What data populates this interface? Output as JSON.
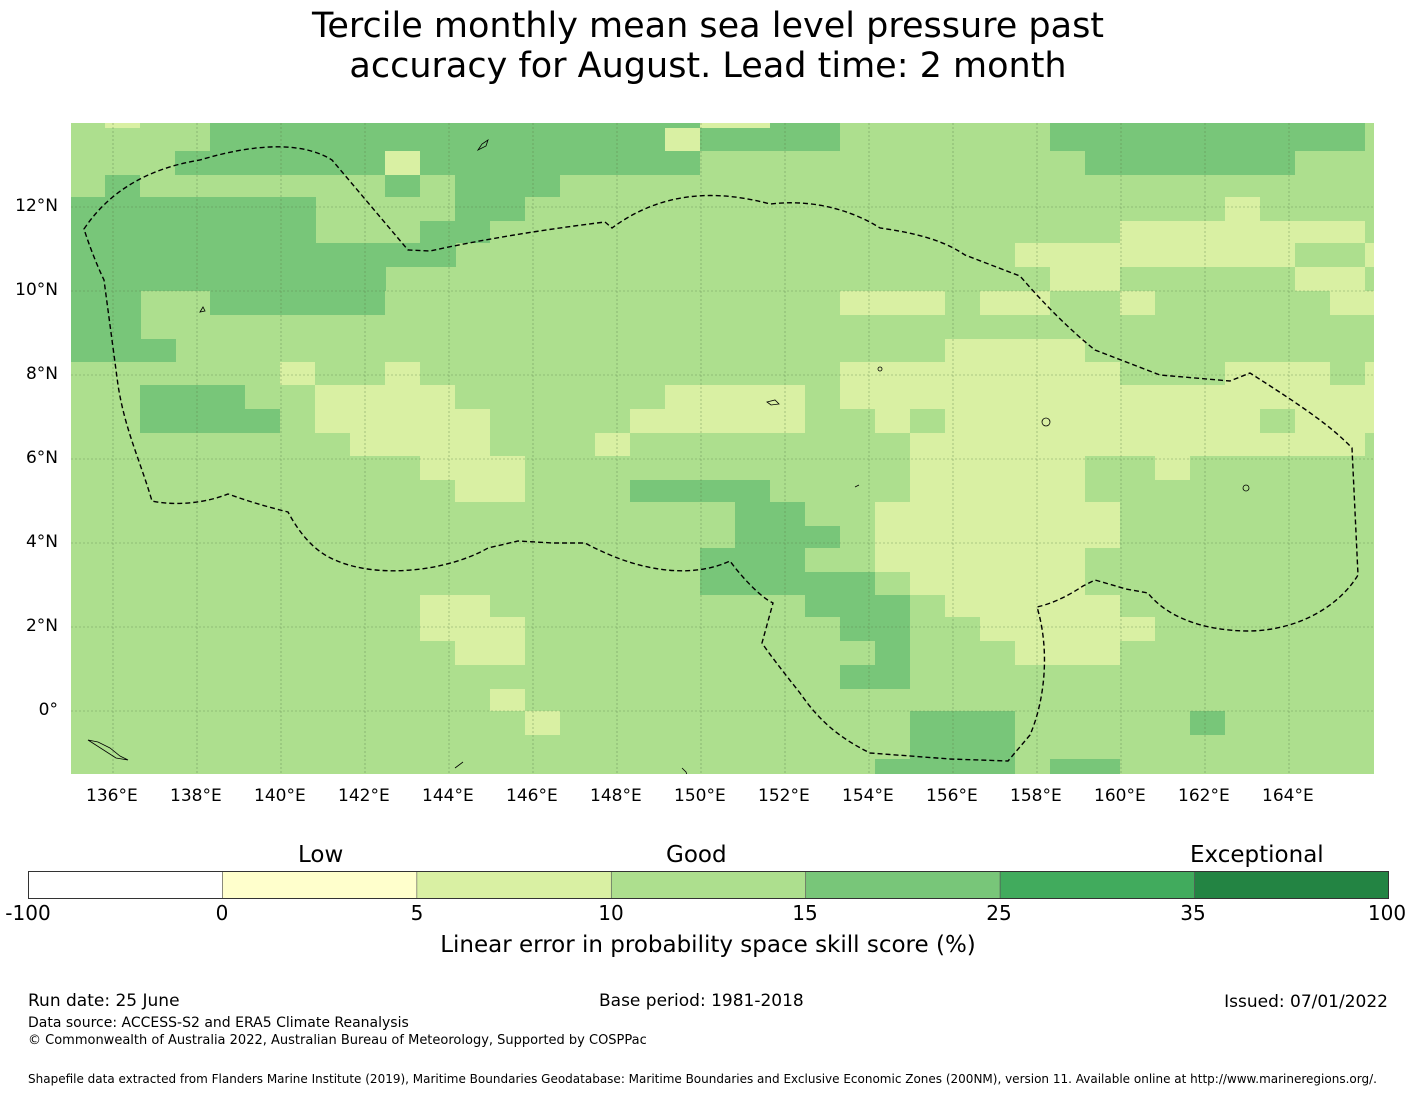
{
  "title_line1": "Tercile monthly mean sea level pressure past",
  "title_line2": "accuracy for August. Lead time: 2 month",
  "map": {
    "lon_labels": [
      "136°E",
      "138°E",
      "140°E",
      "142°E",
      "144°E",
      "146°E",
      "148°E",
      "150°E",
      "152°E",
      "154°E",
      "156°E",
      "158°E",
      "160°E",
      "162°E",
      "164°E"
    ],
    "lat_labels": [
      "12°N",
      "10°N",
      "8°N",
      "6°N",
      "4°N",
      "2°N",
      "0°"
    ],
    "category_colors": {
      "10-15": "#addf8e",
      "15-25": "#78c679",
      "5-10": "#d9f0a3"
    }
  },
  "colorbar": {
    "categories": {
      "low": "Low",
      "good": "Good",
      "exceptional": "Exceptional"
    },
    "ticks": [
      "-100",
      "0",
      "5",
      "10",
      "15",
      "25",
      "35",
      "100"
    ],
    "colors": [
      "#ffffff",
      "#ffffcc",
      "#d9f0a3",
      "#addf8e",
      "#78c679",
      "#41ab5d",
      "#238443"
    ],
    "label": "Linear error in probability space skill score (%)"
  },
  "footer": {
    "run_date": "Run date: 25 June",
    "base_period": "Base period: 1981-2018",
    "issued": "Issued: 07/01/2022",
    "data_source": "Data source: ACCESS-S2 and ERA5 Climate Reanalysis",
    "copyright": "© Commonwealth of Australia 2022, Australian Bureau of Meteorology, Supported by COSPPac",
    "shapefile": "Shapefile data extracted from Flanders Marine Institute (2019), Maritime Boundaries Geodatabase: Maritime Boundaries and Exclusive Economic Zones (200NM), version 11. Available online at http://www.marineregions.org/."
  }
}
